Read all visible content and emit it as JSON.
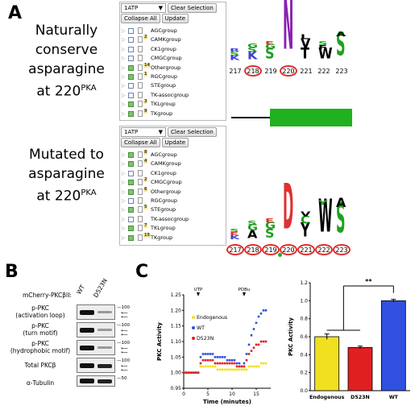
{
  "panels": {
    "a": "A",
    "b": "B",
    "c": "C"
  },
  "captions": {
    "top": {
      "line1": "Naturally",
      "line2": "conserve",
      "line3": "asparagine",
      "line4_prefix": "at 220",
      "line4_sup": "PKA"
    },
    "bottom": {
      "line1": "Mutated to",
      "line2": "asparagine",
      "line3_prefix": "at 220",
      "line3_sup": "PKA"
    }
  },
  "tree_top": {
    "select_value": "1ATP",
    "clear_label": "Clear Selection",
    "collapse_label": "Collapse All",
    "update_label": "Update",
    "items": [
      {
        "label": "AGCgroup",
        "count": "",
        "checked": false
      },
      {
        "label": "CAMKgroup",
        "count": "2",
        "checked": false
      },
      {
        "label": "CK1group",
        "count": "",
        "checked": false
      },
      {
        "label": "CMGCgroup",
        "count": "",
        "checked": false
      },
      {
        "label": "Othergroup",
        "count": "14",
        "checked": true
      },
      {
        "label": "RGCgroup",
        "count": "1",
        "checked": true
      },
      {
        "label": "STEgroup",
        "count": "",
        "checked": false
      },
      {
        "label": "TK-assocgroup",
        "count": "",
        "checked": false
      },
      {
        "label": "TKLgroup",
        "count": "3",
        "checked": true
      },
      {
        "label": "TKgroup",
        "count": "9",
        "checked": true
      }
    ]
  },
  "tree_bottom": {
    "select_value": "1ATP",
    "clear_label": "Clear Selection",
    "collapse_label": "Collapse All",
    "update_label": "Update",
    "items": [
      {
        "label": "AGCgroup",
        "count": "8",
        "checked": true
      },
      {
        "label": "CAMKgroup",
        "count": "4",
        "checked": true
      },
      {
        "label": "CK1group",
        "count": "",
        "checked": false
      },
      {
        "label": "CMGCgroup",
        "count": "2",
        "checked": true
      },
      {
        "label": "Othergroup",
        "count": "6",
        "checked": true
      },
      {
        "label": "RGCgroup",
        "count": "",
        "checked": false
      },
      {
        "label": "STEgroup",
        "count": "5",
        "checked": true
      },
      {
        "label": "TK-assocgroup",
        "count": "",
        "checked": false
      },
      {
        "label": "TKLgroup",
        "count": "7",
        "checked": true
      },
      {
        "label": "TKgroup",
        "count": "15",
        "checked": true
      }
    ]
  },
  "logo_top": {
    "positions": [
      "217",
      "218",
      "219",
      "220",
      "221",
      "222",
      "223"
    ],
    "circled": [
      "218",
      "220"
    ],
    "letters": [
      {
        "pos": "217",
        "stack": [
          {
            "ch": "K",
            "color": "#4040d0",
            "h": 6
          },
          {
            "ch": "S",
            "color": "#20a020",
            "h": 5
          },
          {
            "ch": "R",
            "color": "#4040d0",
            "h": 4
          }
        ]
      },
      {
        "pos": "218",
        "stack": [
          {
            "ch": "K",
            "color": "#4040d0",
            "h": 10
          },
          {
            "ch": "S",
            "color": "#20a020",
            "h": 6
          },
          {
            "ch": "G",
            "color": "#20a020",
            "h": 5
          }
        ]
      },
      {
        "pos": "219",
        "stack": [
          {
            "ch": "S",
            "color": "#20a020",
            "h": 14
          },
          {
            "ch": "G",
            "color": "#20a020",
            "h": 6
          },
          {
            "ch": "E",
            "color": "#e03030",
            "h": 4
          }
        ]
      },
      {
        "pos": "220",
        "stack": [
          {
            "ch": "N",
            "color": "#8a20b0",
            "h": 62
          }
        ]
      },
      {
        "pos": "221",
        "stack": [
          {
            "ch": "T",
            "color": "#000000",
            "h": 14
          },
          {
            "ch": "V",
            "color": "#000000",
            "h": 12
          },
          {
            "ch": "L",
            "color": "#000000",
            "h": 6
          }
        ]
      },
      {
        "pos": "222",
        "stack": [
          {
            "ch": "W",
            "color": "#000000",
            "h": 14
          },
          {
            "ch": "F",
            "color": "#000000",
            "h": 5
          },
          {
            "ch": "S",
            "color": "#20a020",
            "h": 5
          }
        ]
      },
      {
        "pos": "223",
        "stack": [
          {
            "ch": "S",
            "color": "#20a020",
            "h": 30
          },
          {
            "ch": "A",
            "color": "#000000",
            "h": 5
          }
        ]
      }
    ]
  },
  "logo_bottom": {
    "positions": [
      "217",
      "218",
      "219",
      "220",
      "221",
      "222",
      "223"
    ],
    "circled": [
      "217",
      "218",
      "219",
      "220",
      "221",
      "222",
      "223"
    ],
    "letters": [
      {
        "pos": "217",
        "stack": [
          {
            "ch": "K",
            "color": "#4040d0",
            "h": 5
          },
          {
            "ch": "E",
            "color": "#e03030",
            "h": 4
          },
          {
            "ch": "S",
            "color": "#20a020",
            "h": 4
          }
        ]
      },
      {
        "pos": "218",
        "stack": [
          {
            "ch": "A",
            "color": "#000000",
            "h": 10
          },
          {
            "ch": "G",
            "color": "#20a020",
            "h": 8
          },
          {
            "ch": "S",
            "color": "#20a020",
            "h": 5
          }
        ]
      },
      {
        "pos": "219",
        "stack": [
          {
            "ch": "S",
            "color": "#20a020",
            "h": 12
          },
          {
            "ch": "G",
            "color": "#20a020",
            "h": 9
          },
          {
            "ch": "E",
            "color": "#e03030",
            "h": 5
          }
        ]
      },
      {
        "pos": "220",
        "stack": [
          {
            "ch": "D",
            "color": "#e03030",
            "h": 58
          }
        ]
      },
      {
        "pos": "221",
        "stack": [
          {
            "ch": "Y",
            "color": "#000000",
            "h": 18
          },
          {
            "ch": "C",
            "color": "#20a020",
            "h": 10
          },
          {
            "ch": "V",
            "color": "#000000",
            "h": 6
          }
        ]
      },
      {
        "pos": "222",
        "stack": [
          {
            "ch": "W",
            "color": "#000000",
            "h": 42
          },
          {
            "ch": "Y",
            "color": "#20a020",
            "h": 6
          }
        ]
      },
      {
        "pos": "223",
        "stack": [
          {
            "ch": "S",
            "color": "#20a020",
            "h": 38
          },
          {
            "ch": "A",
            "color": "#000000",
            "h": 12
          }
        ]
      }
    ]
  },
  "western": {
    "construct_label": "mCherry-PKCβII:",
    "lanes": [
      "WT",
      "D523N"
    ],
    "rows": [
      {
        "label": "p-PKC (activation loop)",
        "mw": "100",
        "line1": "p-PKC",
        "line2": "(activation loop)"
      },
      {
        "label": "p-PKC (turn motif)",
        "mw": "100",
        "line1": "p-PKC",
        "line2": "(turn motif)"
      },
      {
        "label": "p-PKC (hydrophobic motif)",
        "mw": "100",
        "line1": "p-PKC",
        "line2": "(hydrophobic motif)"
      },
      {
        "label": "Total PKCβ",
        "mw": "100",
        "line1": "Total PKCβ",
        "line2": ""
      },
      {
        "label": "α-Tubulin",
        "mw": "50",
        "line1": "α-Tubulin",
        "line2": ""
      }
    ]
  },
  "colors": {
    "endogenous": "#f0e020",
    "wt": "#3050e0",
    "d523n": "#e02020",
    "logo_bar": "#20b020"
  },
  "chart_data": [
    {
      "type": "line",
      "xlabel": "Time (minutes)",
      "ylabel": "PKC Activity",
      "xlim": [
        0,
        18
      ],
      "ylim": [
        0.95,
        1.25
      ],
      "xticks": [
        0,
        5,
        10,
        15
      ],
      "yticks": [
        0.95,
        1.0,
        1.05,
        1.1,
        1.15,
        1.2,
        1.25
      ],
      "annotations": [
        {
          "text": "UTP",
          "x": 3
        },
        {
          "text": "PDBu",
          "x": 12.5
        }
      ],
      "legend": [
        "Endogenous",
        "WT",
        "D523N"
      ],
      "series": [
        {
          "name": "Endogenous",
          "color": "#f0e020",
          "x": [
            0,
            0.5,
            1,
            1.5,
            2,
            2.5,
            3,
            3.5,
            4,
            4.5,
            5,
            5.5,
            6,
            6.5,
            7,
            7.5,
            8,
            8.5,
            9,
            9.5,
            10,
            10.5,
            11,
            11.5,
            12,
            12.5,
            13,
            13.5,
            14,
            14.5,
            15,
            15.5,
            16,
            16.5,
            17
          ],
          "y": [
            1.0,
            1.0,
            1.0,
            1.0,
            1.0,
            1.0,
            1.0,
            1.02,
            1.02,
            1.02,
            1.02,
            1.02,
            1.02,
            1.02,
            1.01,
            1.01,
            1.01,
            1.01,
            1.01,
            1.01,
            1.01,
            1.01,
            1.01,
            1.01,
            1.01,
            1.01,
            1.01,
            1.02,
            1.02,
            1.02,
            1.02,
            1.02,
            1.03,
            1.03,
            1.03
          ]
        },
        {
          "name": "WT",
          "color": "#3050e0",
          "x": [
            0,
            0.5,
            1,
            1.5,
            2,
            2.5,
            3,
            3.5,
            4,
            4.5,
            5,
            5.5,
            6,
            6.5,
            7,
            7.5,
            8,
            8.5,
            9,
            9.5,
            10,
            10.5,
            11,
            11.5,
            12,
            12.5,
            13,
            13.5,
            14,
            14.5,
            15,
            15.5,
            16,
            16.5,
            17
          ],
          "y": [
            1.0,
            1.0,
            1.0,
            1.0,
            1.0,
            1.0,
            1.0,
            1.05,
            1.06,
            1.06,
            1.06,
            1.06,
            1.06,
            1.05,
            1.05,
            1.05,
            1.05,
            1.05,
            1.04,
            1.04,
            1.04,
            1.04,
            1.03,
            1.03,
            1.02,
            1.03,
            1.06,
            1.09,
            1.12,
            1.14,
            1.16,
            1.18,
            1.19,
            1.2,
            1.2
          ]
        },
        {
          "name": "D523N",
          "color": "#e02020",
          "x": [
            0,
            0.5,
            1,
            1.5,
            2,
            2.5,
            3,
            3.5,
            4,
            4.5,
            5,
            5.5,
            6,
            6.5,
            7,
            7.5,
            8,
            8.5,
            9,
            9.5,
            10,
            10.5,
            11,
            11.5,
            12,
            12.5,
            13,
            13.5,
            14,
            14.5,
            15,
            15.5,
            16,
            16.5,
            17
          ],
          "y": [
            1.0,
            1.0,
            1.0,
            1.0,
            1.0,
            1.0,
            1.0,
            1.03,
            1.04,
            1.04,
            1.04,
            1.04,
            1.04,
            1.03,
            1.03,
            1.03,
            1.03,
            1.03,
            1.03,
            1.03,
            1.03,
            1.03,
            1.02,
            1.02,
            1.02,
            1.02,
            1.04,
            1.06,
            1.07,
            1.08,
            1.09,
            1.09,
            1.1,
            1.1,
            1.1
          ]
        }
      ]
    },
    {
      "type": "bar",
      "ylabel": "PKC Activity",
      "categories": [
        "Endogenous",
        "D523N",
        "WT"
      ],
      "values": [
        0.6,
        0.48,
        1.0
      ],
      "errors": [
        0.03,
        0.015,
        0.015
      ],
      "colors": [
        "#f0e020",
        "#e02020",
        "#3050e0"
      ],
      "ylim": [
        0,
        1.2
      ],
      "yticks": [
        0,
        0.2,
        0.4,
        0.6,
        0.8,
        1.0,
        1.2
      ],
      "significance": "**"
    }
  ]
}
